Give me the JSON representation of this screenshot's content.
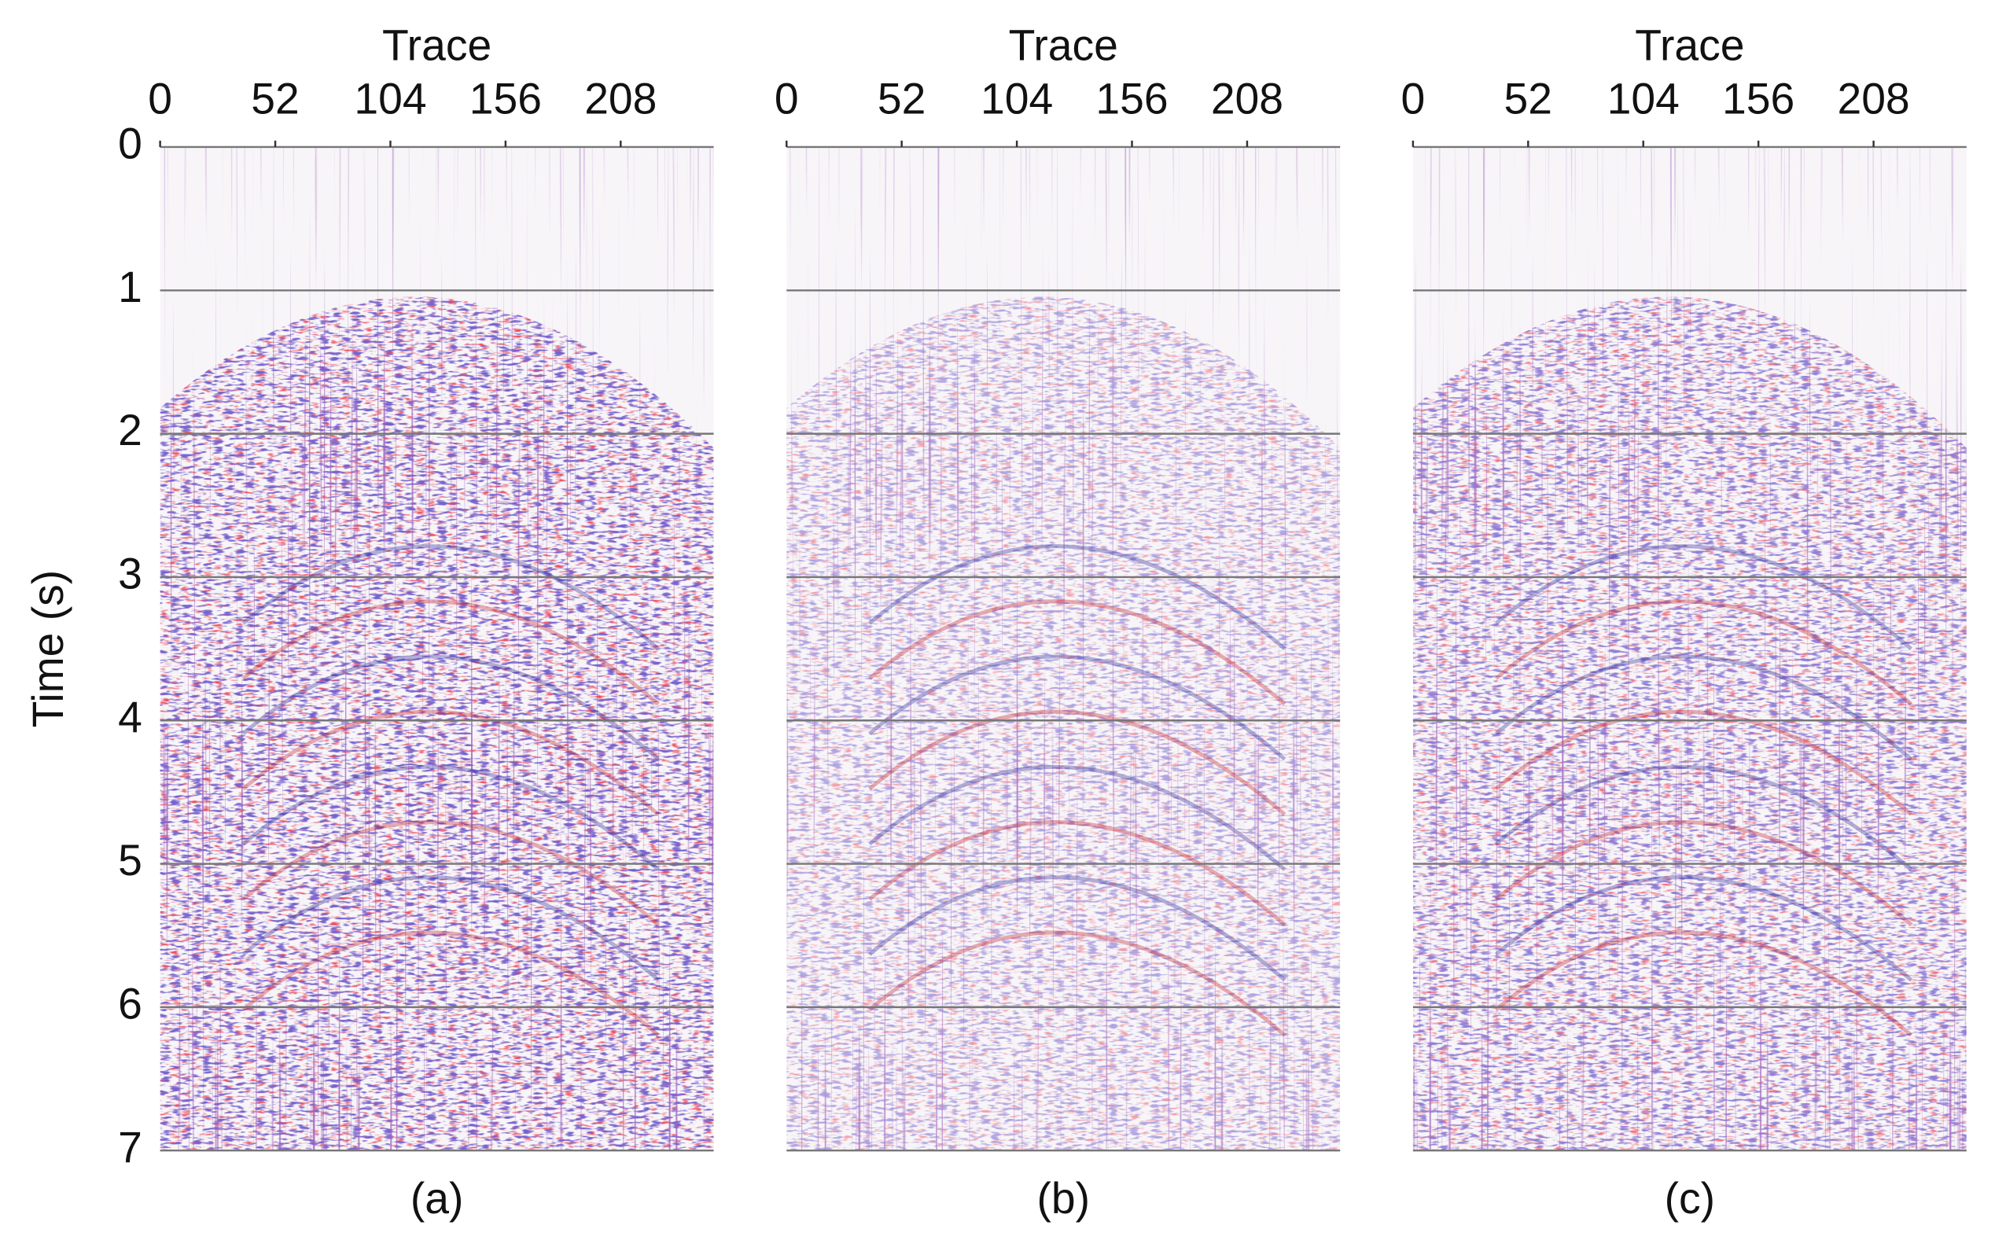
{
  "chart_data": [
    {
      "type": "image",
      "xlabel": "Trace",
      "ylabel": "Time (s)",
      "caption": "(a)",
      "xlim": [
        0,
        250
      ],
      "xticks": [
        0,
        52,
        104,
        156,
        208
      ],
      "ylim": [
        7,
        0
      ],
      "yticks": [
        0,
        1,
        2,
        3,
        4,
        5,
        6,
        7
      ],
      "ytick_labels": true,
      "grid": true
    },
    {
      "type": "image",
      "xlabel": "Trace",
      "caption": "(b)",
      "xlim": [
        0,
        250
      ],
      "xticks": [
        0,
        52,
        104,
        156,
        208
      ],
      "ylim": [
        7,
        0
      ],
      "yticks": [
        0,
        1,
        2,
        3,
        4,
        5,
        6,
        7
      ],
      "ytick_labels": false,
      "grid": true
    },
    {
      "type": "image",
      "xlabel": "Trace",
      "caption": "(c)",
      "xlim": [
        0,
        250
      ],
      "xticks": [
        0,
        52,
        104,
        156,
        208
      ],
      "ylim": [
        7,
        0
      ],
      "yticks": [
        0,
        1,
        2,
        3,
        4,
        5,
        6,
        7
      ],
      "ytick_labels": false,
      "grid": true
    }
  ]
}
